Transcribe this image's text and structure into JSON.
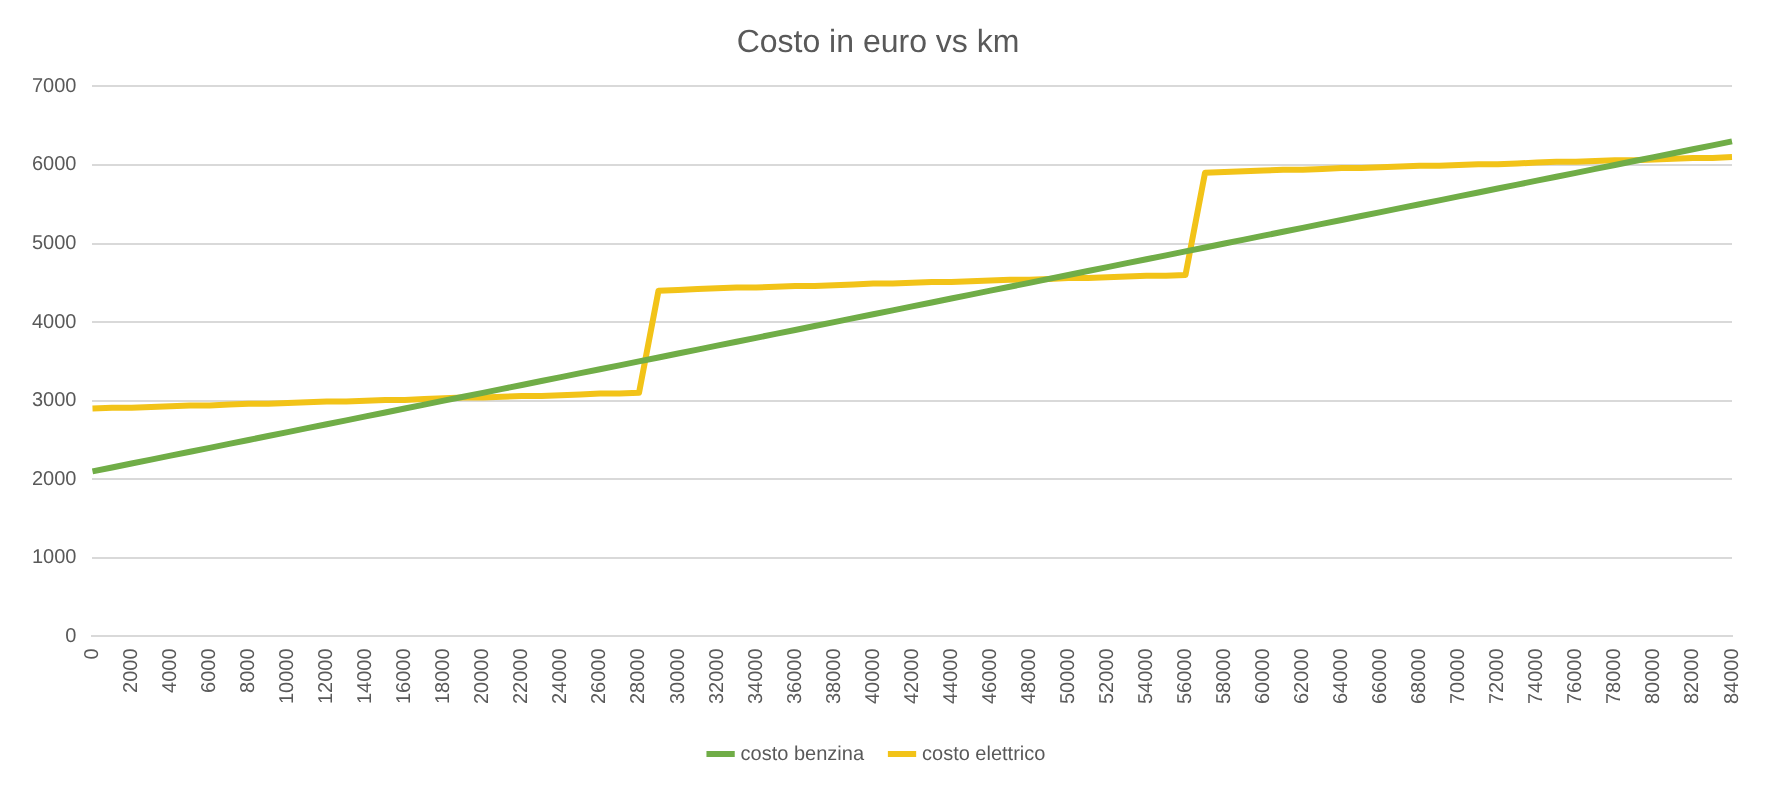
{
  "chart_data": {
    "type": "line",
    "title": "Costo in euro vs km",
    "categories": [
      "0",
      null,
      "2000",
      null,
      "4000",
      null,
      "6000",
      null,
      "8000",
      null,
      "10000",
      null,
      "12000",
      null,
      "14000",
      null,
      "16000",
      null,
      "18000",
      null,
      "20000",
      null,
      "22000",
      null,
      "24000",
      null,
      "26000",
      null,
      "28000",
      null,
      "30000",
      null,
      "32000",
      null,
      "34000",
      null,
      "36000",
      null,
      "38000",
      null,
      "40000",
      null,
      "42000",
      null,
      "44000",
      null,
      "46000",
      null,
      "48000",
      null,
      "50000",
      null,
      "52000",
      null,
      "54000",
      null,
      "56000",
      null,
      "58000",
      null,
      "60000",
      null,
      "62000",
      null,
      "64000",
      null,
      "66000",
      null,
      "68000",
      null,
      "70000",
      null,
      "72000",
      null,
      "74000",
      null,
      "76000",
      null,
      "78000",
      null,
      "80000",
      null,
      "82000",
      null,
      "84000"
    ],
    "series": [
      {
        "name": "costo benzina",
        "color": "#70ad47",
        "values": [
          2100,
          2150,
          2200,
          2250,
          2300,
          2350,
          2400,
          2450,
          2500,
          2550,
          2600,
          2650,
          2700,
          2750,
          2800,
          2850,
          2900,
          2950,
          3000,
          3050,
          3100,
          3150,
          3200,
          3250,
          3300,
          3350,
          3400,
          3450,
          3500,
          3550,
          3600,
          3650,
          3700,
          3750,
          3800,
          3850,
          3900,
          3950,
          4000,
          4050,
          4100,
          4150,
          4200,
          4250,
          4300,
          4350,
          4400,
          4450,
          4500,
          4550,
          4600,
          4650,
          4700,
          4750,
          4800,
          4850,
          4900,
          4950,
          5000,
          5050,
          5100,
          5150,
          5200,
          5250,
          5300,
          5350,
          5400,
          5450,
          5500,
          5550,
          5600,
          5650,
          5700,
          5750,
          5800,
          5850,
          5900,
          5950,
          6000,
          6050,
          6100,
          6150,
          6200,
          6250,
          6300
        ]
      },
      {
        "name": "costo elettrico",
        "color": "#f2c318",
        "values": [
          2900,
          2910,
          2910,
          2920,
          2930,
          2940,
          2940,
          2950,
          2960,
          2960,
          2970,
          2980,
          2990,
          2990,
          3000,
          3010,
          3010,
          3020,
          3030,
          3040,
          3040,
          3050,
          3060,
          3060,
          3070,
          3080,
          3090,
          3090,
          3100,
          4400,
          4410,
          4420,
          4430,
          4440,
          4440,
          4450,
          4460,
          4460,
          4470,
          4480,
          4490,
          4490,
          4500,
          4510,
          4510,
          4520,
          4530,
          4540,
          4540,
          4550,
          4560,
          4560,
          4570,
          4580,
          4590,
          4590,
          4600,
          5900,
          5910,
          5920,
          5930,
          5940,
          5940,
          5950,
          5960,
          5960,
          5970,
          5980,
          5990,
          5990,
          6000,
          6010,
          6010,
          6020,
          6030,
          6040,
          6040,
          6050,
          6060,
          6060,
          6070,
          6080,
          6090,
          6090,
          6100
        ]
      }
    ],
    "ylim": [
      0,
      7000
    ],
    "yticks": [
      0,
      1000,
      2000,
      3000,
      4000,
      5000,
      6000,
      7000
    ],
    "grid": "y",
    "legend": "bottom",
    "marker": "none",
    "line_style": "solid"
  }
}
